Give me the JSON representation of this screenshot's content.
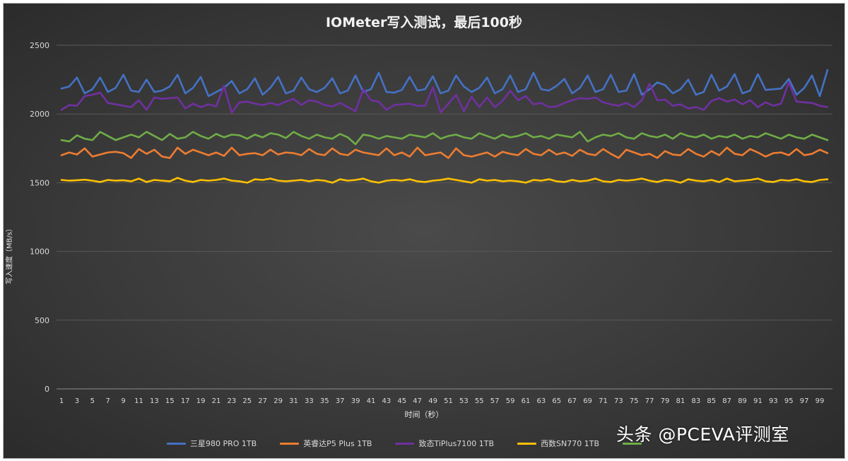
{
  "watermark": "头条 @PCEVA评测室",
  "chart_data": {
    "type": "line",
    "title": "IOMeter写入测试，最后100秒",
    "xlabel": "时间（秒）",
    "ylabel": "写入速度（MB/s）",
    "ylim": [
      0,
      2500
    ],
    "yticks": [
      0,
      500,
      1000,
      1500,
      2000,
      2500
    ],
    "x": [
      1,
      2,
      3,
      4,
      5,
      6,
      7,
      8,
      9,
      10,
      11,
      12,
      13,
      14,
      15,
      16,
      17,
      18,
      19,
      20,
      21,
      22,
      23,
      24,
      25,
      26,
      27,
      28,
      29,
      30,
      31,
      32,
      33,
      34,
      35,
      36,
      37,
      38,
      39,
      40,
      41,
      42,
      43,
      44,
      45,
      46,
      47,
      48,
      49,
      50,
      51,
      52,
      53,
      54,
      55,
      56,
      57,
      58,
      59,
      60,
      61,
      62,
      63,
      64,
      65,
      66,
      67,
      68,
      69,
      70,
      71,
      72,
      73,
      74,
      75,
      76,
      77,
      78,
      79,
      80,
      81,
      82,
      83,
      84,
      85,
      86,
      87,
      88,
      89,
      90,
      91,
      92,
      93,
      94,
      95,
      96,
      97,
      98,
      99,
      100
    ],
    "xtick_labels": [
      "1",
      "3",
      "5",
      "7",
      "9",
      "11",
      "13",
      "15",
      "17",
      "19",
      "21",
      "23",
      "25",
      "27",
      "29",
      "31",
      "33",
      "35",
      "37",
      "39",
      "41",
      "43",
      "45",
      "47",
      "49",
      "51",
      "53",
      "55",
      "57",
      "59",
      "61",
      "63",
      "65",
      "67",
      "69",
      "71",
      "73",
      "75",
      "77",
      "79",
      "81",
      "83",
      "85",
      "87",
      "89",
      "91",
      "93",
      "95",
      "97",
      "99"
    ],
    "grid": true,
    "legend_position": "bottom",
    "series": [
      {
        "name": "三星980 PRO 1TB",
        "color": "#4472c4",
        "values": [
          2185,
          2200,
          2265,
          2150,
          2180,
          2265,
          2160,
          2190,
          2285,
          2170,
          2160,
          2250,
          2160,
          2170,
          2200,
          2285,
          2150,
          2190,
          2270,
          2130,
          2160,
          2190,
          2240,
          2150,
          2180,
          2260,
          2140,
          2190,
          2270,
          2150,
          2170,
          2265,
          2180,
          2160,
          2190,
          2260,
          2150,
          2170,
          2280,
          2160,
          2180,
          2300,
          2160,
          2155,
          2175,
          2270,
          2170,
          2180,
          2275,
          2150,
          2170,
          2280,
          2200,
          2160,
          2190,
          2265,
          2150,
          2180,
          2280,
          2160,
          2180,
          2300,
          2180,
          2170,
          2205,
          2255,
          2150,
          2190,
          2280,
          2160,
          2180,
          2285,
          2160,
          2170,
          2290,
          2140,
          2180,
          2230,
          2210,
          2150,
          2180,
          2250,
          2140,
          2160,
          2285,
          2170,
          2200,
          2290,
          2150,
          2170,
          2290,
          2175,
          2180,
          2185,
          2255,
          2140,
          2190,
          2280,
          2130,
          2320
        ]
      },
      {
        "name": "英睿达P5 Plus 1TB",
        "color": "#ed7d31",
        "values": [
          1700,
          1720,
          1705,
          1750,
          1690,
          1705,
          1720,
          1725,
          1715,
          1680,
          1745,
          1710,
          1740,
          1690,
          1680,
          1755,
          1710,
          1740,
          1720,
          1700,
          1720,
          1695,
          1755,
          1700,
          1710,
          1715,
          1700,
          1740,
          1705,
          1720,
          1715,
          1700,
          1745,
          1710,
          1700,
          1750,
          1710,
          1700,
          1740,
          1720,
          1710,
          1700,
          1750,
          1700,
          1720,
          1690,
          1755,
          1700,
          1710,
          1720,
          1680,
          1750,
          1700,
          1690,
          1705,
          1720,
          1690,
          1725,
          1710,
          1700,
          1745,
          1710,
          1700,
          1740,
          1705,
          1720,
          1695,
          1740,
          1710,
          1700,
          1745,
          1710,
          1680,
          1740,
          1720,
          1700,
          1710,
          1680,
          1730,
          1705,
          1700,
          1745,
          1710,
          1690,
          1730,
          1700,
          1755,
          1710,
          1700,
          1745,
          1720,
          1690,
          1715,
          1720,
          1700,
          1745,
          1700,
          1710,
          1740,
          1715
        ]
      },
      {
        "name": "致态TiPlus7100 1TB",
        "color": "#7030a0",
        "values": [
          2030,
          2065,
          2060,
          2130,
          2140,
          2155,
          2080,
          2070,
          2060,
          2050,
          2100,
          2030,
          2120,
          2110,
          2115,
          2120,
          2040,
          2075,
          2050,
          2070,
          2055,
          2205,
          2010,
          2085,
          2090,
          2075,
          2065,
          2080,
          2065,
          2090,
          2110,
          2065,
          2100,
          2090,
          2065,
          2055,
          2080,
          2050,
          2020,
          2180,
          2100,
          2090,
          2030,
          2065,
          2070,
          2075,
          2060,
          2060,
          2195,
          2010,
          2075,
          2140,
          2020,
          2125,
          2050,
          2120,
          2050,
          2095,
          2170,
          2100,
          2130,
          2070,
          2080,
          2050,
          2055,
          2080,
          2100,
          2115,
          2110,
          2120,
          2085,
          2070,
          2060,
          2080,
          2050,
          2100,
          2220,
          2100,
          2105,
          2060,
          2070,
          2040,
          2050,
          2030,
          2095,
          2115,
          2090,
          2105,
          2070,
          2100,
          2050,
          2085,
          2060,
          2075,
          2230,
          2090,
          2085,
          2080,
          2060,
          2050
        ]
      },
      {
        "name": "西数SN770 1TB",
        "color": "#ffc000",
        "values": [
          1520,
          1515,
          1518,
          1522,
          1515,
          1505,
          1520,
          1515,
          1518,
          1510,
          1530,
          1505,
          1520,
          1515,
          1510,
          1535,
          1515,
          1505,
          1520,
          1515,
          1520,
          1530,
          1515,
          1510,
          1500,
          1525,
          1520,
          1530,
          1515,
          1510,
          1515,
          1520,
          1510,
          1520,
          1515,
          1500,
          1525,
          1515,
          1520,
          1530,
          1510,
          1500,
          1515,
          1520,
          1515,
          1525,
          1510,
          1505,
          1515,
          1520,
          1530,
          1520,
          1510,
          1500,
          1525,
          1515,
          1520,
          1510,
          1515,
          1510,
          1500,
          1520,
          1515,
          1525,
          1510,
          1505,
          1520,
          1510,
          1515,
          1530,
          1510,
          1505,
          1520,
          1515,
          1520,
          1530,
          1515,
          1505,
          1520,
          1515,
          1500,
          1525,
          1515,
          1510,
          1520,
          1505,
          1530,
          1510,
          1515,
          1520,
          1530,
          1510,
          1505,
          1520,
          1515,
          1525,
          1510,
          1505,
          1520,
          1525
        ]
      },
      {
        "name": "",
        "color": "#70ad47",
        "values": [
          1810,
          1800,
          1845,
          1820,
          1810,
          1870,
          1840,
          1810,
          1830,
          1850,
          1830,
          1870,
          1840,
          1810,
          1855,
          1820,
          1830,
          1870,
          1840,
          1820,
          1855,
          1830,
          1850,
          1845,
          1820,
          1850,
          1830,
          1860,
          1850,
          1825,
          1870,
          1840,
          1820,
          1850,
          1830,
          1820,
          1855,
          1830,
          1780,
          1850,
          1840,
          1820,
          1840,
          1830,
          1820,
          1850,
          1840,
          1830,
          1860,
          1820,
          1840,
          1850,
          1830,
          1820,
          1860,
          1840,
          1820,
          1850,
          1830,
          1840,
          1860,
          1830,
          1840,
          1820,
          1850,
          1840,
          1830,
          1870,
          1800,
          1830,
          1850,
          1840,
          1860,
          1830,
          1820,
          1860,
          1840,
          1830,
          1850,
          1820,
          1860,
          1840,
          1830,
          1850,
          1820,
          1840,
          1830,
          1850,
          1820,
          1840,
          1830,
          1860,
          1840,
          1820,
          1850,
          1830,
          1820,
          1850,
          1830,
          1810
        ]
      }
    ]
  }
}
